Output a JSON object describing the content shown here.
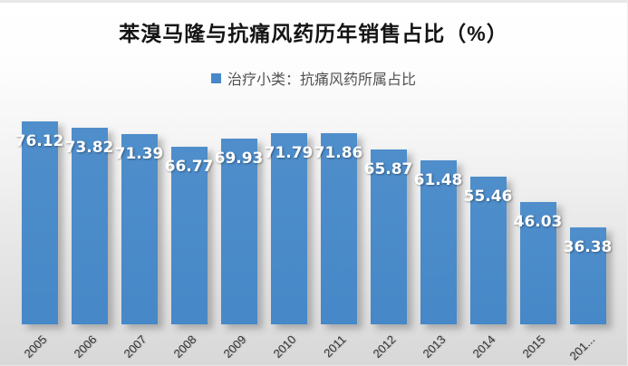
{
  "page": {
    "title": "苯溴马隆与抗痛风药历年销售占比（%）",
    "legend_label": "治疗小类：抗痛风药所属占比"
  },
  "chart_data": {
    "type": "bar",
    "title": "苯溴马隆与抗痛风药历年销售占比（%）",
    "legend": [
      "治疗小类：抗痛风药所属占比"
    ],
    "legend_position": "top",
    "categories": [
      "2005",
      "2006",
      "2007",
      "2008",
      "2009",
      "2010",
      "2011",
      "2012",
      "2013",
      "2014",
      "2015",
      "201..."
    ],
    "values": [
      76.12,
      73.82,
      71.39,
      66.77,
      69.93,
      71.79,
      71.86,
      65.87,
      61.48,
      55.46,
      46.03,
      36.38
    ],
    "data_labels": [
      "76.12",
      "73.82",
      "71.39",
      "66.77",
      "69.93",
      "71.79",
      "71.86",
      "65.87",
      "61.48",
      "55.46",
      "46.03",
      "36.38"
    ],
    "data_label_position": "inside-end",
    "xlabel": "",
    "ylabel": "",
    "ylim": [
      0,
      80
    ],
    "grid": false,
    "x_tick_rotation": 45
  },
  "colors": {
    "bar": "#4688C8",
    "bar_top": "#4F8ECB",
    "data_label": "#FFFFFF",
    "title_text": "#141414",
    "legend_text": "#515151",
    "axis_text": "#2F2F2F",
    "background_top": "#FFFFFF",
    "background_bottom": "#D8D8D8"
  }
}
